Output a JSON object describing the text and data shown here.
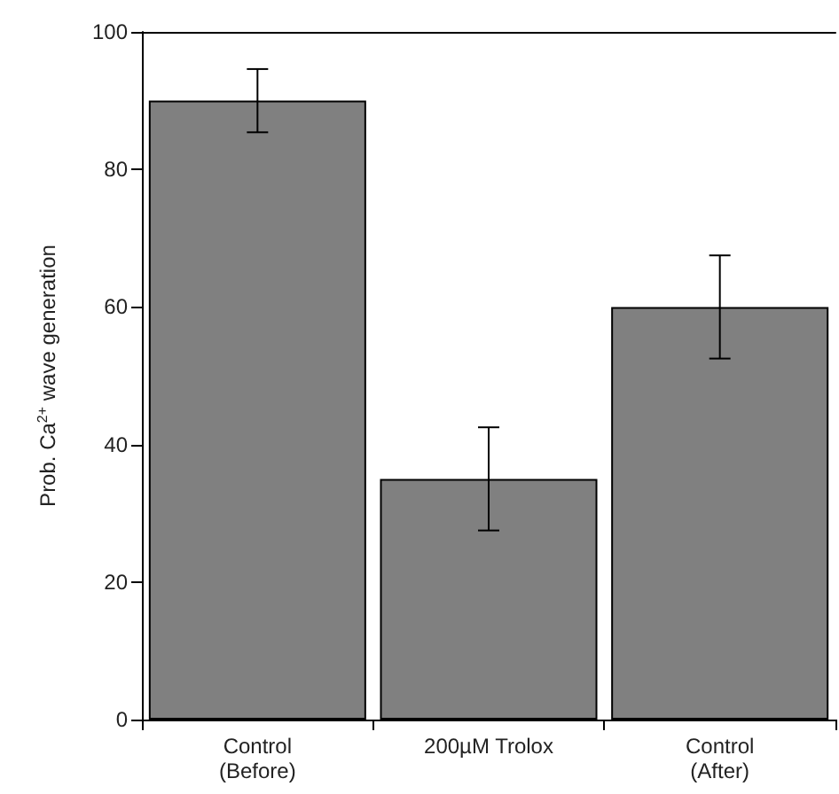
{
  "chart_data": {
    "type": "bar",
    "ylabel": "Prob. Ca$^{2+}$ wave generation",
    "categories": [
      "Control\n(Before)",
      "200µM Trolox",
      "Control\n(After)"
    ],
    "values": [
      90,
      35,
      60
    ],
    "errors": [
      4.6,
      7.5,
      7.5
    ],
    "color": "#808080",
    "ylim": [
      0,
      100
    ],
    "yticks": [
      0,
      20,
      40,
      60,
      80,
      100
    ]
  }
}
